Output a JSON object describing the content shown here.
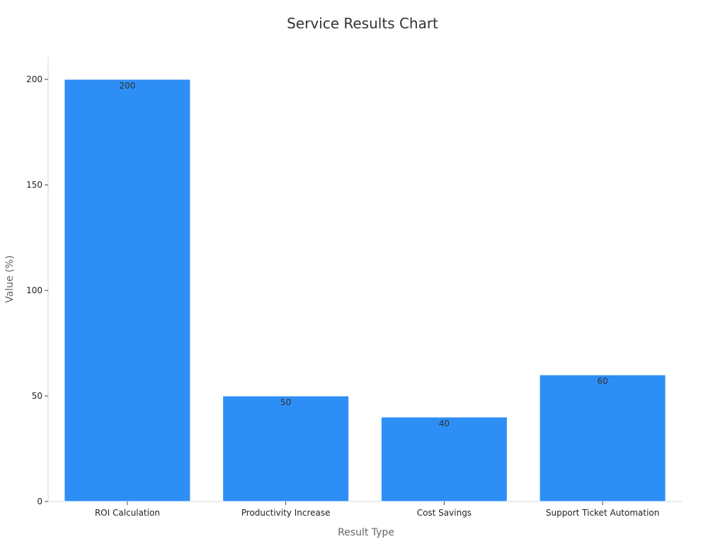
{
  "chart_data": {
    "type": "bar",
    "title": "Service Results Chart",
    "xlabel": "Result Type",
    "ylabel": "Value (%)",
    "categories": [
      "ROI Calculation",
      "Productivity Increase",
      "Cost Savings",
      "Support Ticket Automation"
    ],
    "values": [
      200,
      50,
      40,
      60
    ],
    "data_labels": [
      "200",
      "50",
      "40",
      "60"
    ],
    "ylim": [
      0,
      210
    ],
    "yticks": [
      0,
      50,
      100,
      150,
      200
    ],
    "ytick_labels": [
      "0",
      "50",
      "100",
      "150",
      "200"
    ],
    "grid": false,
    "legend": "none",
    "bar_color": "#2d8ff5"
  }
}
